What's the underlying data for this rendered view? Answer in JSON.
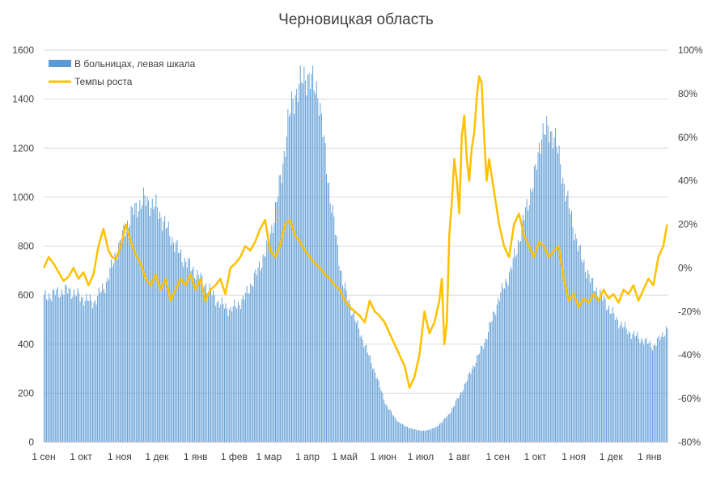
{
  "chart_data": {
    "type": "bar+line",
    "title": "Черновицкая область",
    "x_ticks": [
      "1 сен",
      "1 окт",
      "1 ноя",
      "1 дек",
      "1 янв",
      "1 фев",
      "1 мар",
      "1 апр",
      "1 май",
      "1 июн",
      "1 июл",
      "1 авг",
      "1 сен",
      "1 окт",
      "1 ноя",
      "1 дек",
      "1 янв"
    ],
    "y_left": {
      "ticks": [
        "0",
        "200",
        "400",
        "600",
        "800",
        "1000",
        "1200",
        "1400",
        "1600"
      ],
      "ylim": [
        0,
        1600
      ]
    },
    "y_right": {
      "ticks": [
        "-80%",
        "-60%",
        "-40%",
        "-20%",
        "0%",
        "20%",
        "40%",
        "60%",
        "80%",
        "100%"
      ],
      "ylim": [
        -80,
        100
      ]
    },
    "series": [
      {
        "name": "В больницах, левая шкала",
        "type": "bar",
        "axis": "left",
        "color": "#5b9bd5",
        "x_day": [
          0,
          10,
          20,
          30,
          40,
          50,
          60,
          67,
          70,
          80,
          90,
          100,
          110,
          122,
          130,
          140,
          150,
          160,
          170,
          180,
          185,
          191,
          196,
          200,
          210,
          220,
          230,
          240,
          250,
          265,
          275,
          285,
          295,
          305,
          315,
          325,
          335,
          345,
          355,
          365,
          375,
          380,
          385,
          390,
          395,
          400,
          410,
          420,
          430,
          440,
          450,
          460,
          470,
          480,
          490,
          500
        ],
        "values": [
          590,
          610,
          620,
          590,
          570,
          650,
          800,
          890,
          930,
          990,
          960,
          860,
          760,
          690,
          640,
          570,
          540,
          580,
          680,
          800,
          920,
          1100,
          1300,
          1400,
          1500,
          1440,
          1000,
          650,
          500,
          300,
          150,
          80,
          55,
          45,
          60,
          110,
          200,
          310,
          420,
          580,
          700,
          790,
          900,
          1000,
          1100,
          1270,
          1260,
          1000,
          780,
          650,
          580,
          500,
          450,
          420,
          390,
          460
        ]
      },
      {
        "name": "Темпы роста",
        "type": "line",
        "axis": "right",
        "color": "#ffc000",
        "x_day": [
          0,
          4,
          8,
          12,
          16,
          20,
          24,
          28,
          32,
          36,
          40,
          44,
          48,
          52,
          55,
          58,
          62,
          66,
          70,
          74,
          78,
          82,
          86,
          90,
          94,
          98,
          102,
          106,
          110,
          114,
          118,
          122,
          126,
          130,
          134,
          138,
          142,
          146,
          150,
          154,
          158,
          162,
          166,
          170,
          174,
          178,
          182,
          186,
          190,
          194,
          198,
          202,
          206,
          210,
          214,
          218,
          222,
          226,
          230,
          234,
          238,
          242,
          246,
          250,
          254,
          258,
          262,
          266,
          270,
          274,
          278,
          282,
          286,
          290,
          294,
          298,
          302,
          306,
          310,
          314,
          318,
          320,
          322,
          324,
          326,
          328,
          330,
          332,
          334,
          336,
          338,
          340,
          342,
          344,
          346,
          348,
          350,
          352,
          354,
          356,
          358,
          362,
          366,
          370,
          374,
          378,
          382,
          386,
          390,
          394,
          398,
          402,
          406,
          410,
          414,
          418,
          422,
          426,
          430,
          434,
          438,
          442,
          446,
          450,
          454,
          458,
          462,
          466,
          470,
          474,
          478,
          482,
          486,
          490,
          494,
          498,
          501
        ],
        "values": [
          0,
          5,
          2,
          -2,
          -6,
          -4,
          0,
          -5,
          -2,
          -8,
          -3,
          10,
          18,
          8,
          5,
          4,
          10,
          20,
          12,
          6,
          2,
          -5,
          -8,
          -3,
          -10,
          -5,
          -15,
          -10,
          -5,
          -8,
          -3,
          -10,
          -5,
          -15,
          -10,
          -8,
          -5,
          -12,
          0,
          2,
          5,
          10,
          8,
          12,
          18,
          22,
          8,
          5,
          10,
          20,
          22,
          15,
          12,
          8,
          5,
          2,
          0,
          -3,
          -5,
          -8,
          -10,
          -15,
          -18,
          -20,
          -22,
          -25,
          -15,
          -20,
          -22,
          -25,
          -30,
          -35,
          -40,
          -45,
          -55,
          -50,
          -40,
          -20,
          -30,
          -25,
          -15,
          -5,
          -35,
          -25,
          15,
          30,
          50,
          40,
          25,
          60,
          70,
          50,
          40,
          55,
          62,
          78,
          88,
          85,
          60,
          40,
          50,
          35,
          20,
          10,
          5,
          20,
          25,
          15,
          10,
          5,
          12,
          10,
          5,
          8,
          10,
          -5,
          -15,
          -12,
          -18,
          -14,
          -16,
          -12,
          -15,
          -10,
          -14,
          -12,
          -16,
          -10,
          -12,
          -8,
          -15,
          -10,
          -5,
          -8,
          5,
          10,
          20
        ]
      }
    ]
  }
}
